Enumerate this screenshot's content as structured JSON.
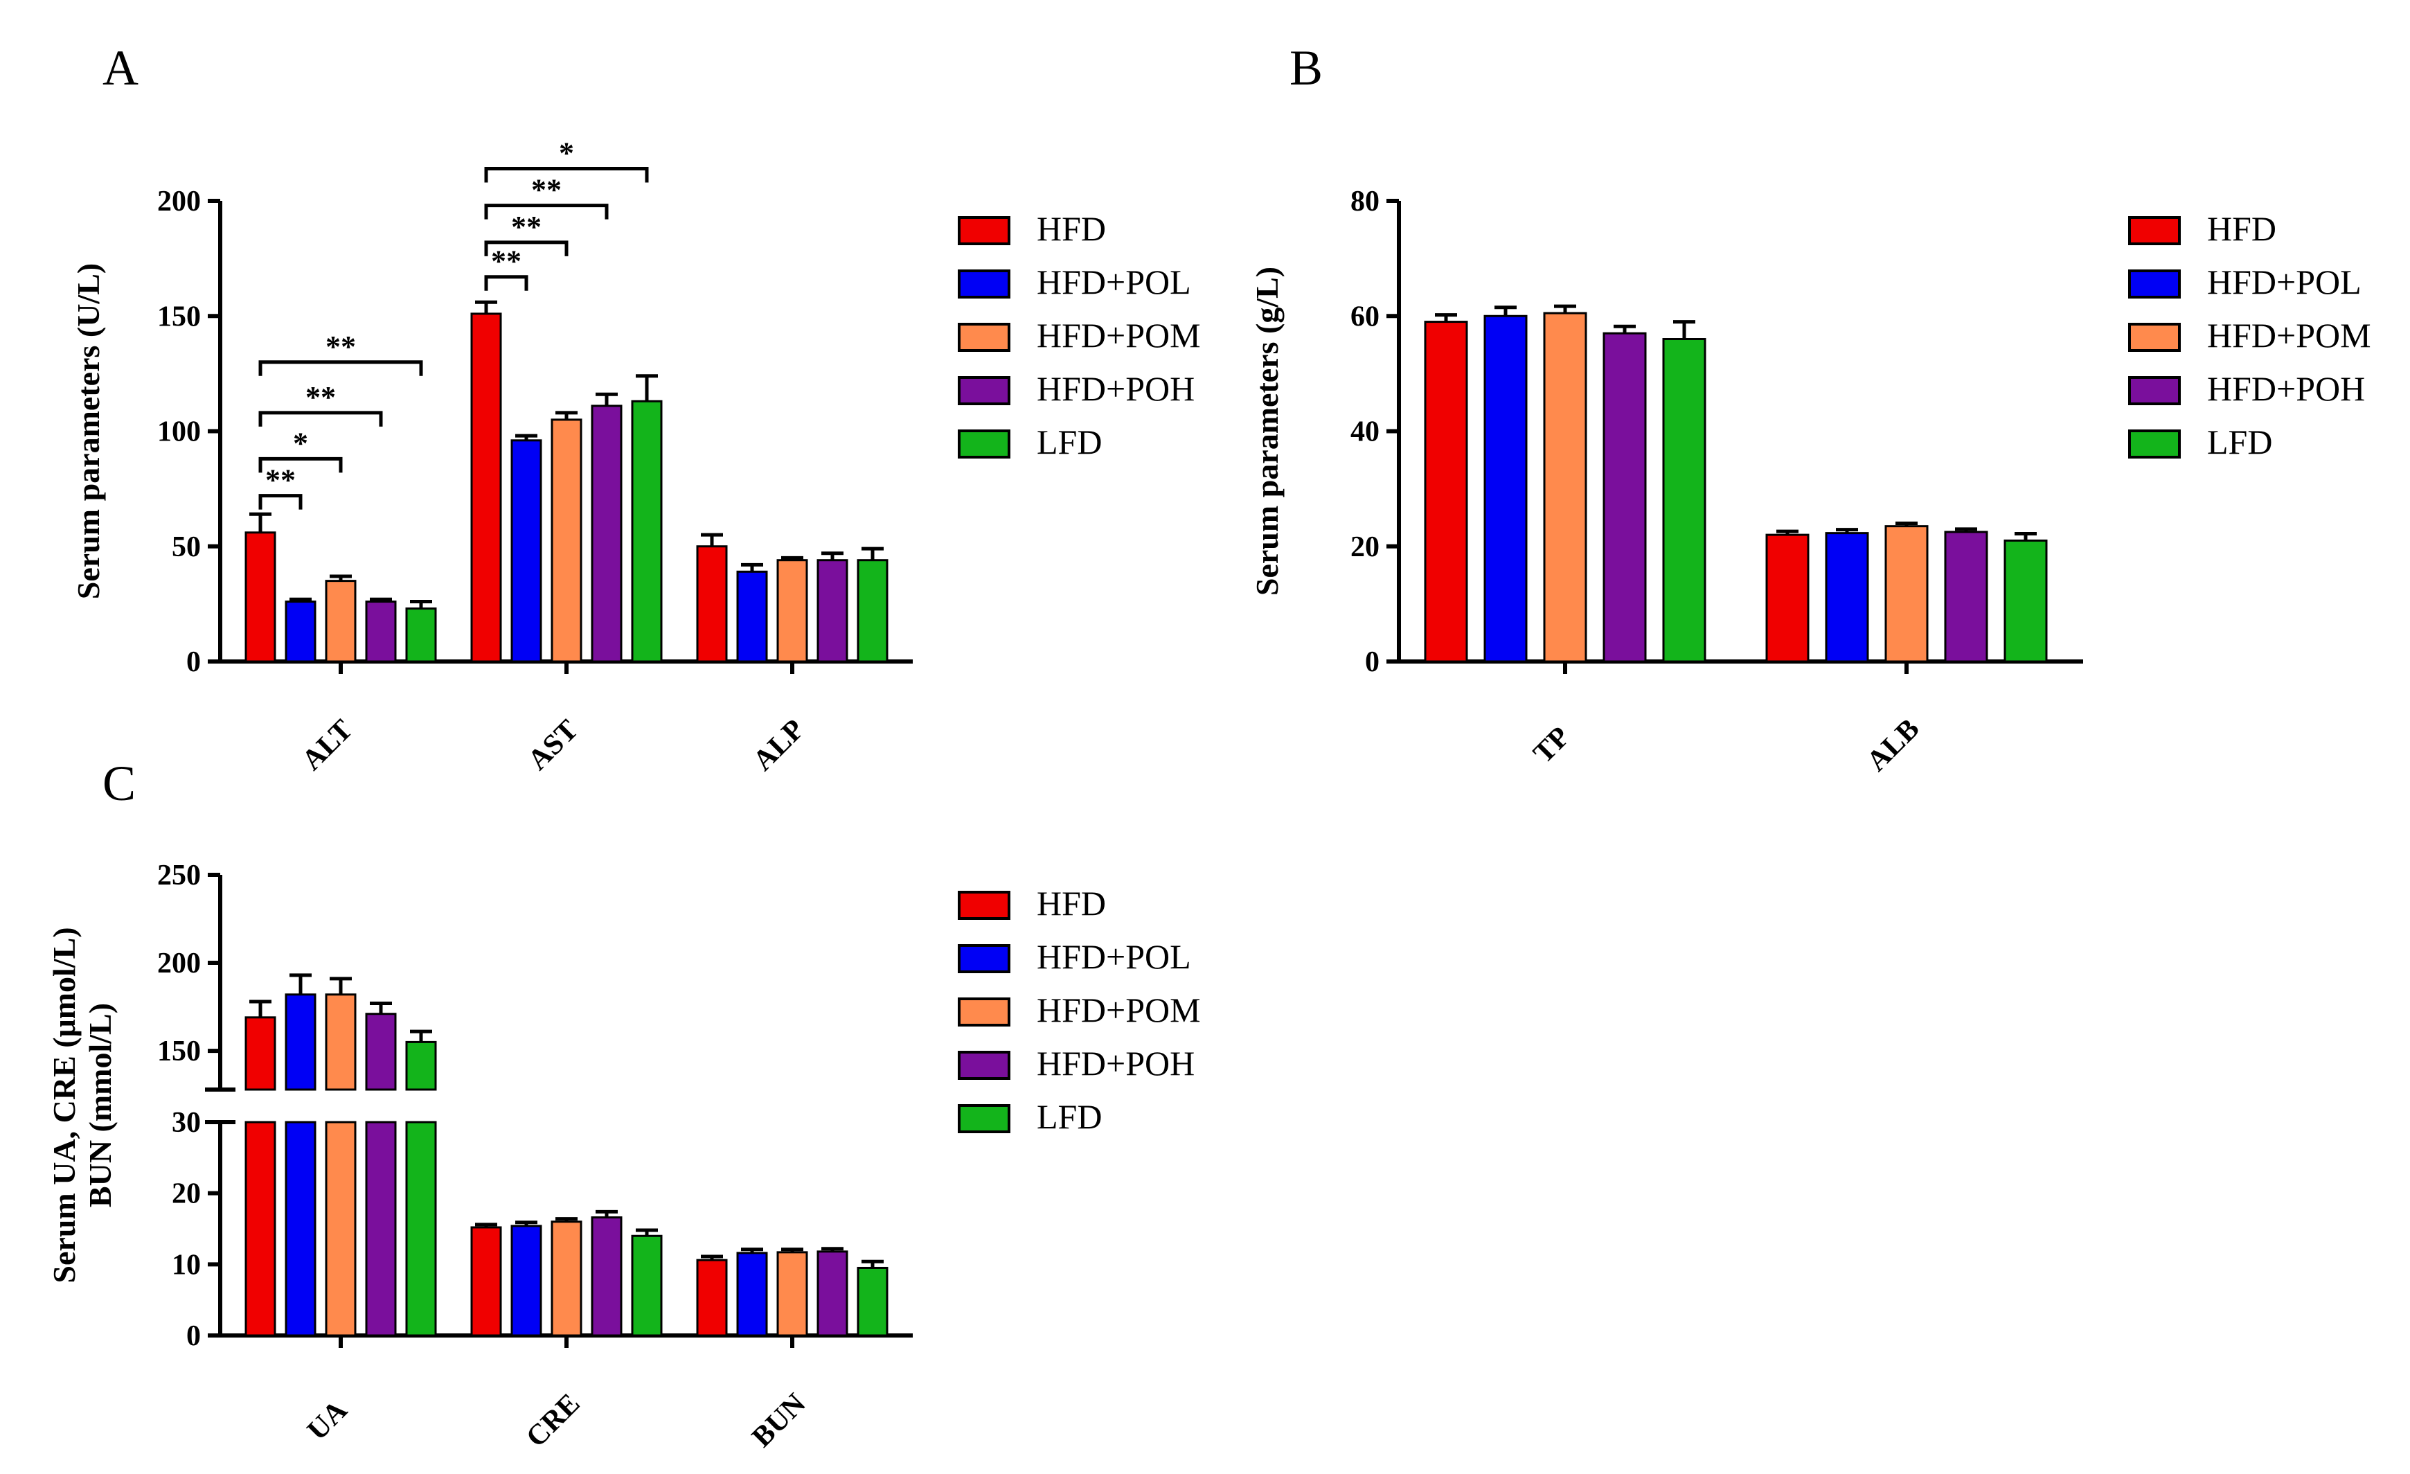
{
  "colors": {
    "HFD": "#f00000",
    "HFD+POL": "#0000f5",
    "HFD+POM": "#ff8a4d",
    "HFD+POH": "#7a0f9c",
    "LFD": "#13b41b"
  },
  "chart_data": [
    {
      "panel": "A",
      "type": "bar",
      "ylabel": "Serum parameters (U/L)",
      "ylim": [
        0,
        200
      ],
      "yticks": [
        "0",
        "50",
        "100",
        "150",
        "200"
      ],
      "yticks_values": [
        0,
        50,
        100,
        150,
        200
      ],
      "categories": [
        "ALT",
        "AST",
        "ALP"
      ],
      "series": [
        {
          "name": "HFD",
          "values": [
            56,
            151,
            50
          ],
          "errors": [
            8,
            5,
            5
          ]
        },
        {
          "name": "HFD+POL",
          "values": [
            26,
            96,
            39
          ],
          "errors": [
            1,
            2,
            3
          ]
        },
        {
          "name": "HFD+POM",
          "values": [
            35,
            105,
            44
          ],
          "errors": [
            2,
            3,
            1
          ]
        },
        {
          "name": "HFD+POH",
          "values": [
            26,
            111,
            44
          ],
          "errors": [
            1,
            5,
            3
          ]
        },
        {
          "name": "LFD",
          "values": [
            23,
            113,
            44
          ],
          "errors": [
            3,
            11,
            5
          ]
        }
      ],
      "significance": [
        {
          "category": "ALT",
          "from": "HFD",
          "to": "HFD+POL",
          "label": "**",
          "level": 72
        },
        {
          "category": "ALT",
          "from": "HFD",
          "to": "HFD+POM",
          "label": "*",
          "level": 88
        },
        {
          "category": "ALT",
          "from": "HFD",
          "to": "HFD+POH",
          "label": "**",
          "level": 108
        },
        {
          "category": "ALT",
          "from": "HFD",
          "to": "LFD",
          "label": "**",
          "level": 130
        },
        {
          "category": "AST",
          "from": "HFD",
          "to": "HFD+POL",
          "label": "**",
          "level": 167
        },
        {
          "category": "AST",
          "from": "HFD",
          "to": "HFD+POM",
          "label": "**",
          "level": 182
        },
        {
          "category": "AST",
          "from": "HFD",
          "to": "HFD+POH",
          "label": "**",
          "level": 198
        },
        {
          "category": "AST",
          "from": "HFD",
          "to": "LFD",
          "label": "*",
          "level": 214
        }
      ]
    },
    {
      "panel": "B",
      "type": "bar",
      "ylabel": "Serum parameters (g/L)",
      "ylim": [
        0,
        80
      ],
      "yticks": [
        "0",
        "20",
        "40",
        "60",
        "80"
      ],
      "yticks_values": [
        0,
        20,
        40,
        60,
        80
      ],
      "categories": [
        "TP",
        "ALB"
      ],
      "series": [
        {
          "name": "HFD",
          "values": [
            59,
            22
          ],
          "errors": [
            1.2,
            0.6
          ]
        },
        {
          "name": "HFD+POL",
          "values": [
            60,
            22.3
          ],
          "errors": [
            1.5,
            0.6
          ]
        },
        {
          "name": "HFD+POM",
          "values": [
            60.5,
            23.5
          ],
          "errors": [
            1.2,
            0.5
          ]
        },
        {
          "name": "HFD+POH",
          "values": [
            57,
            22.5
          ],
          "errors": [
            1.2,
            0.5
          ]
        },
        {
          "name": "LFD",
          "values": [
            56,
            21
          ],
          "errors": [
            3,
            1.2
          ]
        }
      ],
      "significance": []
    },
    {
      "panel": "C",
      "type": "bar",
      "ylabel_line1": "Serum UA, CRE (μmol/L)",
      "ylabel_line2": "BUN (mmol/L)",
      "axis_break": true,
      "lower_ylim": [
        0,
        30
      ],
      "lower_yticks": [
        "0",
        "10",
        "20",
        "30"
      ],
      "lower_yticks_values": [
        0,
        10,
        20,
        30
      ],
      "upper_ylim": [
        128,
        250
      ],
      "upper_yticks": [
        "150",
        "200",
        "250"
      ],
      "upper_yticks_values": [
        150,
        200,
        250
      ],
      "categories": [
        "UA",
        "CRE",
        "BUN"
      ],
      "series": [
        {
          "name": "HFD",
          "values": [
            169,
            15.2,
            10.6
          ],
          "errors": [
            9,
            0.4,
            0.5
          ]
        },
        {
          "name": "HFD+POL",
          "values": [
            182,
            15.4,
            11.6
          ],
          "errors": [
            11,
            0.5,
            0.5
          ]
        },
        {
          "name": "HFD+POM",
          "values": [
            182,
            16,
            11.7
          ],
          "errors": [
            9,
            0.4,
            0.4
          ]
        },
        {
          "name": "HFD+POH",
          "values": [
            171,
            16.6,
            11.8
          ],
          "errors": [
            6,
            0.8,
            0.4
          ]
        },
        {
          "name": "LFD",
          "values": [
            155,
            14,
            9.5
          ],
          "errors": [
            6,
            0.8,
            0.9
          ]
        }
      ],
      "significance": []
    }
  ],
  "legends": [
    {
      "panel": "A",
      "labels": [
        "HFD",
        "HFD+POL",
        "HFD+POM",
        "HFD+POH",
        "LFD"
      ]
    },
    {
      "panel": "B",
      "labels": [
        "HFD",
        "HFD+POL",
        "HFD+POM",
        "HFD+POH",
        "LFD"
      ]
    },
    {
      "panel": "C",
      "labels": [
        "HFD",
        "HFD+POL",
        "HFD+POM",
        "HFD+POH",
        "LFD"
      ]
    }
  ]
}
